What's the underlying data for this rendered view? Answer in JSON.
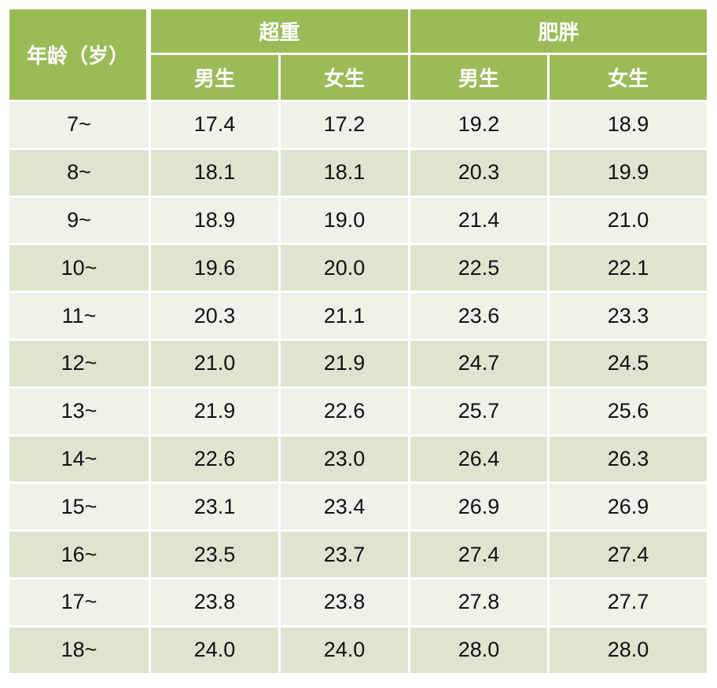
{
  "table": {
    "header": {
      "age": "年龄（岁）",
      "groups": [
        "超重",
        "肥胖"
      ],
      "sub": [
        "男生",
        "女生",
        "男生",
        "女生"
      ]
    },
    "rows": [
      [
        "7~",
        "17.4",
        "17.2",
        "19.2",
        "18.9"
      ],
      [
        "8~",
        "18.1",
        "18.1",
        "20.3",
        "19.9"
      ],
      [
        "9~",
        "18.9",
        "19.0",
        "21.4",
        "21.0"
      ],
      [
        "10~",
        "19.6",
        "20.0",
        "22.5",
        "22.1"
      ],
      [
        "11~",
        "20.3",
        "21.1",
        "23.6",
        "23.3"
      ],
      [
        "12~",
        "21.0",
        "21.9",
        "24.7",
        "24.5"
      ],
      [
        "13~",
        "21.9",
        "22.6",
        "25.7",
        "25.6"
      ],
      [
        "14~",
        "22.6",
        "23.0",
        "26.4",
        "26.3"
      ],
      [
        "15~",
        "23.1",
        "23.4",
        "26.9",
        "26.9"
      ],
      [
        "16~",
        "23.5",
        "23.7",
        "27.4",
        "27.4"
      ],
      [
        "17~",
        "23.8",
        "23.8",
        "27.8",
        "27.7"
      ],
      [
        "18~",
        "24.0",
        "24.0",
        "28.0",
        "28.0"
      ]
    ]
  },
  "colors": {
    "header": "#9bbb59",
    "row_light": "#eef2e9",
    "row_dark": "#dce5cf"
  }
}
